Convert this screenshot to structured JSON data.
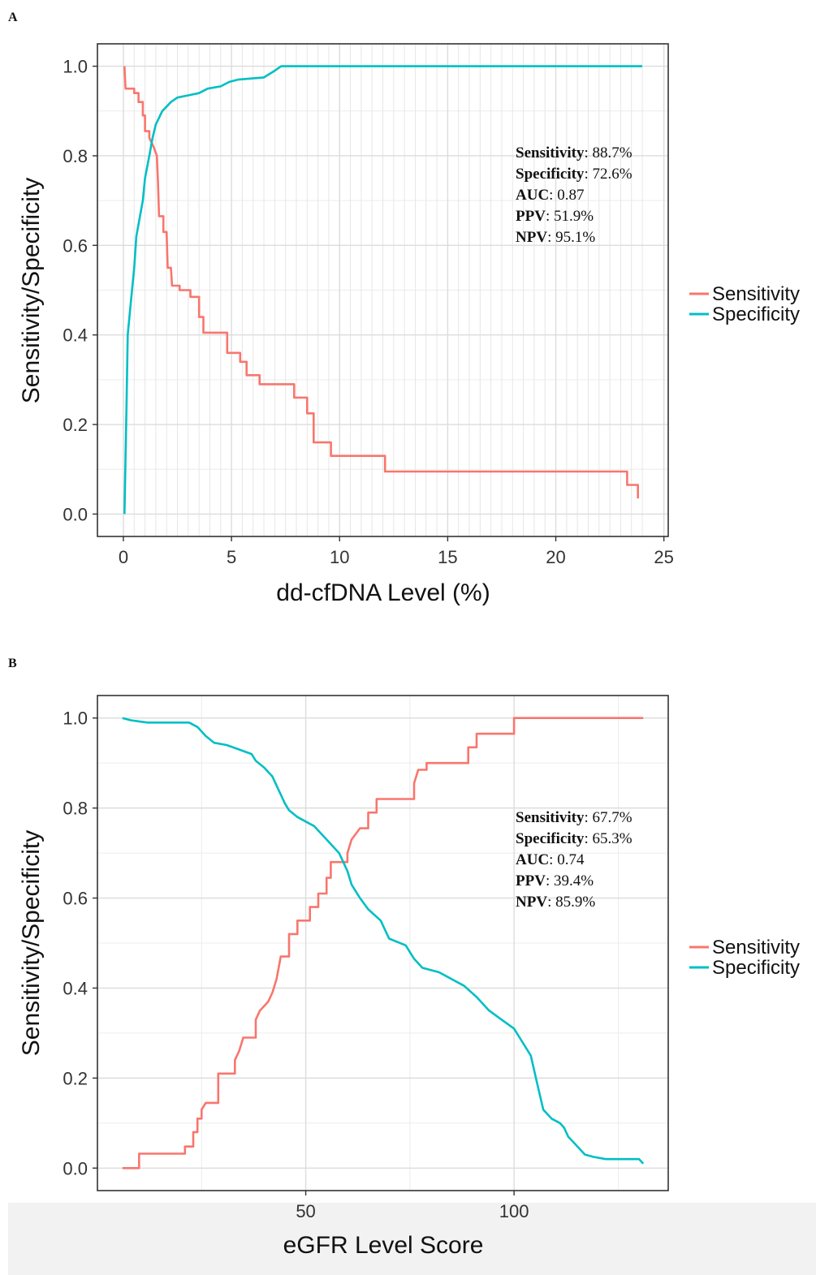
{
  "panels": [
    {
      "letter": "A",
      "stats": [
        {
          "name": "Sensitivity",
          "value": ": 88.7%"
        },
        {
          "name": "Specificity",
          "value": ": 72.6%"
        },
        {
          "name": "AUC",
          "value": ": 0.87"
        },
        {
          "name": "PPV",
          "value": ": 51.9%"
        },
        {
          "name": "NPV",
          "value": ": 95.1%"
        }
      ]
    },
    {
      "letter": "B",
      "stats": [
        {
          "name": "Sensitivity",
          "value": ": 67.7%"
        },
        {
          "name": "Specificity",
          "value": ": 65.3%"
        },
        {
          "name": "AUC",
          "value": ": 0.74"
        },
        {
          "name": "PPV",
          "value": ": 39.4%"
        },
        {
          "name": "NPV",
          "value": ": 85.9%"
        }
      ]
    }
  ],
  "chart_data": [
    {
      "type": "line",
      "xlabel": "dd-cfDNA Level (%)",
      "ylabel": "Sensitivity/Specificity",
      "xlim": [
        -1.2,
        25.2
      ],
      "ylim": [
        -0.05,
        1.05
      ],
      "x_ticks": [
        0,
        5,
        10,
        15,
        20,
        25
      ],
      "x_tick_labels": [
        "0",
        "5",
        "10",
        "15",
        "20",
        "25"
      ],
      "y_ticks": [
        0,
        0.2,
        0.4,
        0.6,
        0.8,
        1.0
      ],
      "y_tick_labels": [
        "0.0",
        "0.2",
        "0.4",
        "0.6",
        "0.8",
        "1.0"
      ],
      "grid": true,
      "legend_position": "right",
      "series": [
        {
          "name": "Sensitivity",
          "color": "#f8766d",
          "points": [
            [
              0.05,
              1.0
            ],
            [
              0.1,
              0.95
            ],
            [
              0.5,
              0.95
            ],
            [
              0.5,
              0.94
            ],
            [
              0.7,
              0.94
            ],
            [
              0.7,
              0.92
            ],
            [
              0.9,
              0.92
            ],
            [
              0.9,
              0.89
            ],
            [
              1.0,
              0.89
            ],
            [
              1.0,
              0.855
            ],
            [
              1.2,
              0.855
            ],
            [
              1.2,
              0.84
            ],
            [
              1.4,
              0.82
            ],
            [
              1.55,
              0.8
            ],
            [
              1.6,
              0.74
            ],
            [
              1.65,
              0.665
            ],
            [
              1.85,
              0.665
            ],
            [
              1.85,
              0.63
            ],
            [
              2.0,
              0.63
            ],
            [
              2.05,
              0.55
            ],
            [
              2.2,
              0.55
            ],
            [
              2.25,
              0.51
            ],
            [
              2.6,
              0.51
            ],
            [
              2.6,
              0.5
            ],
            [
              3.1,
              0.5
            ],
            [
              3.1,
              0.485
            ],
            [
              3.5,
              0.485
            ],
            [
              3.5,
              0.44
            ],
            [
              3.7,
              0.44
            ],
            [
              3.7,
              0.405
            ],
            [
              4.8,
              0.405
            ],
            [
              4.8,
              0.36
            ],
            [
              5.4,
              0.36
            ],
            [
              5.4,
              0.34
            ],
            [
              5.7,
              0.34
            ],
            [
              5.7,
              0.31
            ],
            [
              6.3,
              0.31
            ],
            [
              6.3,
              0.29
            ],
            [
              7.9,
              0.29
            ],
            [
              7.9,
              0.26
            ],
            [
              8.5,
              0.26
            ],
            [
              8.5,
              0.225
            ],
            [
              8.8,
              0.225
            ],
            [
              8.8,
              0.16
            ],
            [
              9.6,
              0.16
            ],
            [
              9.6,
              0.13
            ],
            [
              12.1,
              0.13
            ],
            [
              12.1,
              0.095
            ],
            [
              23.3,
              0.095
            ],
            [
              23.3,
              0.065
            ],
            [
              23.8,
              0.065
            ],
            [
              23.8,
              0.035
            ]
          ]
        },
        {
          "name": "Specificity",
          "color": "#00bfc4",
          "points": [
            [
              0.05,
              0.0
            ],
            [
              0.15,
              0.25
            ],
            [
              0.2,
              0.4
            ],
            [
              0.3,
              0.45
            ],
            [
              0.4,
              0.5
            ],
            [
              0.5,
              0.55
            ],
            [
              0.6,
              0.62
            ],
            [
              0.75,
              0.66
            ],
            [
              0.9,
              0.7
            ],
            [
              1.0,
              0.75
            ],
            [
              1.2,
              0.8
            ],
            [
              1.35,
              0.84
            ],
            [
              1.5,
              0.87
            ],
            [
              1.6,
              0.88
            ],
            [
              1.8,
              0.9
            ],
            [
              2.0,
              0.91
            ],
            [
              2.2,
              0.92
            ],
            [
              2.5,
              0.93
            ],
            [
              3.0,
              0.935
            ],
            [
              3.5,
              0.94
            ],
            [
              3.9,
              0.95
            ],
            [
              4.5,
              0.955
            ],
            [
              4.9,
              0.965
            ],
            [
              5.3,
              0.97
            ],
            [
              6.5,
              0.975
            ],
            [
              7.0,
              0.99
            ],
            [
              7.3,
              1.0
            ],
            [
              24.0,
              1.0
            ]
          ]
        }
      ]
    },
    {
      "type": "line",
      "xlabel": "eGFR Level Score",
      "ylabel": "Sensitivity/Specificity",
      "xlim": [
        0,
        137
      ],
      "ylim": [
        -0.05,
        1.05
      ],
      "x_ticks": [
        50,
        100
      ],
      "x_tick_labels": [
        "50",
        "100"
      ],
      "y_ticks": [
        0,
        0.2,
        0.4,
        0.6,
        0.8,
        1.0
      ],
      "y_tick_labels": [
        "0.0",
        "0.2",
        "0.4",
        "0.6",
        "0.8",
        "1.0"
      ],
      "grid": true,
      "legend_position": "right",
      "series": [
        {
          "name": "Sensitivity",
          "color": "#f8766d",
          "points": [
            [
              6,
              0.0
            ],
            [
              10,
              0.0
            ],
            [
              10,
              0.032
            ],
            [
              21,
              0.032
            ],
            [
              21,
              0.048
            ],
            [
              23,
              0.048
            ],
            [
              23,
              0.08
            ],
            [
              24,
              0.08
            ],
            [
              24,
              0.11
            ],
            [
              25,
              0.11
            ],
            [
              25,
              0.13
            ],
            [
              26,
              0.145
            ],
            [
              29,
              0.145
            ],
            [
              29,
              0.21
            ],
            [
              33,
              0.21
            ],
            [
              33,
              0.24
            ],
            [
              34,
              0.26
            ],
            [
              35,
              0.29
            ],
            [
              38,
              0.29
            ],
            [
              38,
              0.33
            ],
            [
              39,
              0.35
            ],
            [
              40,
              0.36
            ],
            [
              41,
              0.37
            ],
            [
              42,
              0.39
            ],
            [
              43,
              0.42
            ],
            [
              44,
              0.47
            ],
            [
              46,
              0.47
            ],
            [
              46,
              0.52
            ],
            [
              48,
              0.52
            ],
            [
              48,
              0.55
            ],
            [
              51,
              0.55
            ],
            [
              51,
              0.58
            ],
            [
              53,
              0.58
            ],
            [
              53,
              0.61
            ],
            [
              55,
              0.61
            ],
            [
              55,
              0.645
            ],
            [
              56,
              0.645
            ],
            [
              56,
              0.68
            ],
            [
              60,
              0.68
            ],
            [
              60,
              0.7
            ],
            [
              61,
              0.73
            ],
            [
              63,
              0.755
            ],
            [
              65,
              0.755
            ],
            [
              65,
              0.79
            ],
            [
              67,
              0.79
            ],
            [
              67,
              0.82
            ],
            [
              76,
              0.82
            ],
            [
              76,
              0.855
            ],
            [
              77,
              0.885
            ],
            [
              79,
              0.885
            ],
            [
              79,
              0.9
            ],
            [
              89,
              0.9
            ],
            [
              89,
              0.935
            ],
            [
              91,
              0.935
            ],
            [
              91,
              0.965
            ],
            [
              95,
              0.965
            ],
            [
              95,
              0.965
            ],
            [
              100,
              0.965
            ],
            [
              100,
              1.0
            ],
            [
              131,
              1.0
            ]
          ]
        },
        {
          "name": "Specificity",
          "color": "#00bfc4",
          "points": [
            [
              6,
              1.0
            ],
            [
              8,
              0.995
            ],
            [
              12,
              0.99
            ],
            [
              22,
              0.99
            ],
            [
              24,
              0.98
            ],
            [
              26,
              0.96
            ],
            [
              28,
              0.945
            ],
            [
              31,
              0.94
            ],
            [
              34,
              0.93
            ],
            [
              37,
              0.92
            ],
            [
              38,
              0.905
            ],
            [
              40,
              0.89
            ],
            [
              42,
              0.87
            ],
            [
              43,
              0.85
            ],
            [
              44,
              0.83
            ],
            [
              45,
              0.81
            ],
            [
              46,
              0.795
            ],
            [
              48,
              0.78
            ],
            [
              50,
              0.77
            ],
            [
              52,
              0.76
            ],
            [
              54,
              0.74
            ],
            [
              56,
              0.72
            ],
            [
              58,
              0.7
            ],
            [
              59,
              0.68
            ],
            [
              60,
              0.66
            ],
            [
              61,
              0.63
            ],
            [
              63,
              0.6
            ],
            [
              65,
              0.575
            ],
            [
              68,
              0.55
            ],
            [
              70,
              0.51
            ],
            [
              74,
              0.495
            ],
            [
              76,
              0.465
            ],
            [
              78,
              0.445
            ],
            [
              82,
              0.435
            ],
            [
              85,
              0.42
            ],
            [
              88,
              0.405
            ],
            [
              91,
              0.38
            ],
            [
              94,
              0.35
            ],
            [
              97,
              0.33
            ],
            [
              100,
              0.31
            ],
            [
              102,
              0.28
            ],
            [
              104,
              0.25
            ],
            [
              105,
              0.21
            ],
            [
              106,
              0.17
            ],
            [
              107,
              0.13
            ],
            [
              109,
              0.11
            ],
            [
              111,
              0.1
            ],
            [
              112,
              0.09
            ],
            [
              113,
              0.07
            ],
            [
              115,
              0.05
            ],
            [
              117,
              0.03
            ],
            [
              119,
              0.025
            ],
            [
              122,
              0.02
            ],
            [
              130,
              0.02
            ],
            [
              131,
              0.01
            ]
          ]
        }
      ]
    }
  ]
}
